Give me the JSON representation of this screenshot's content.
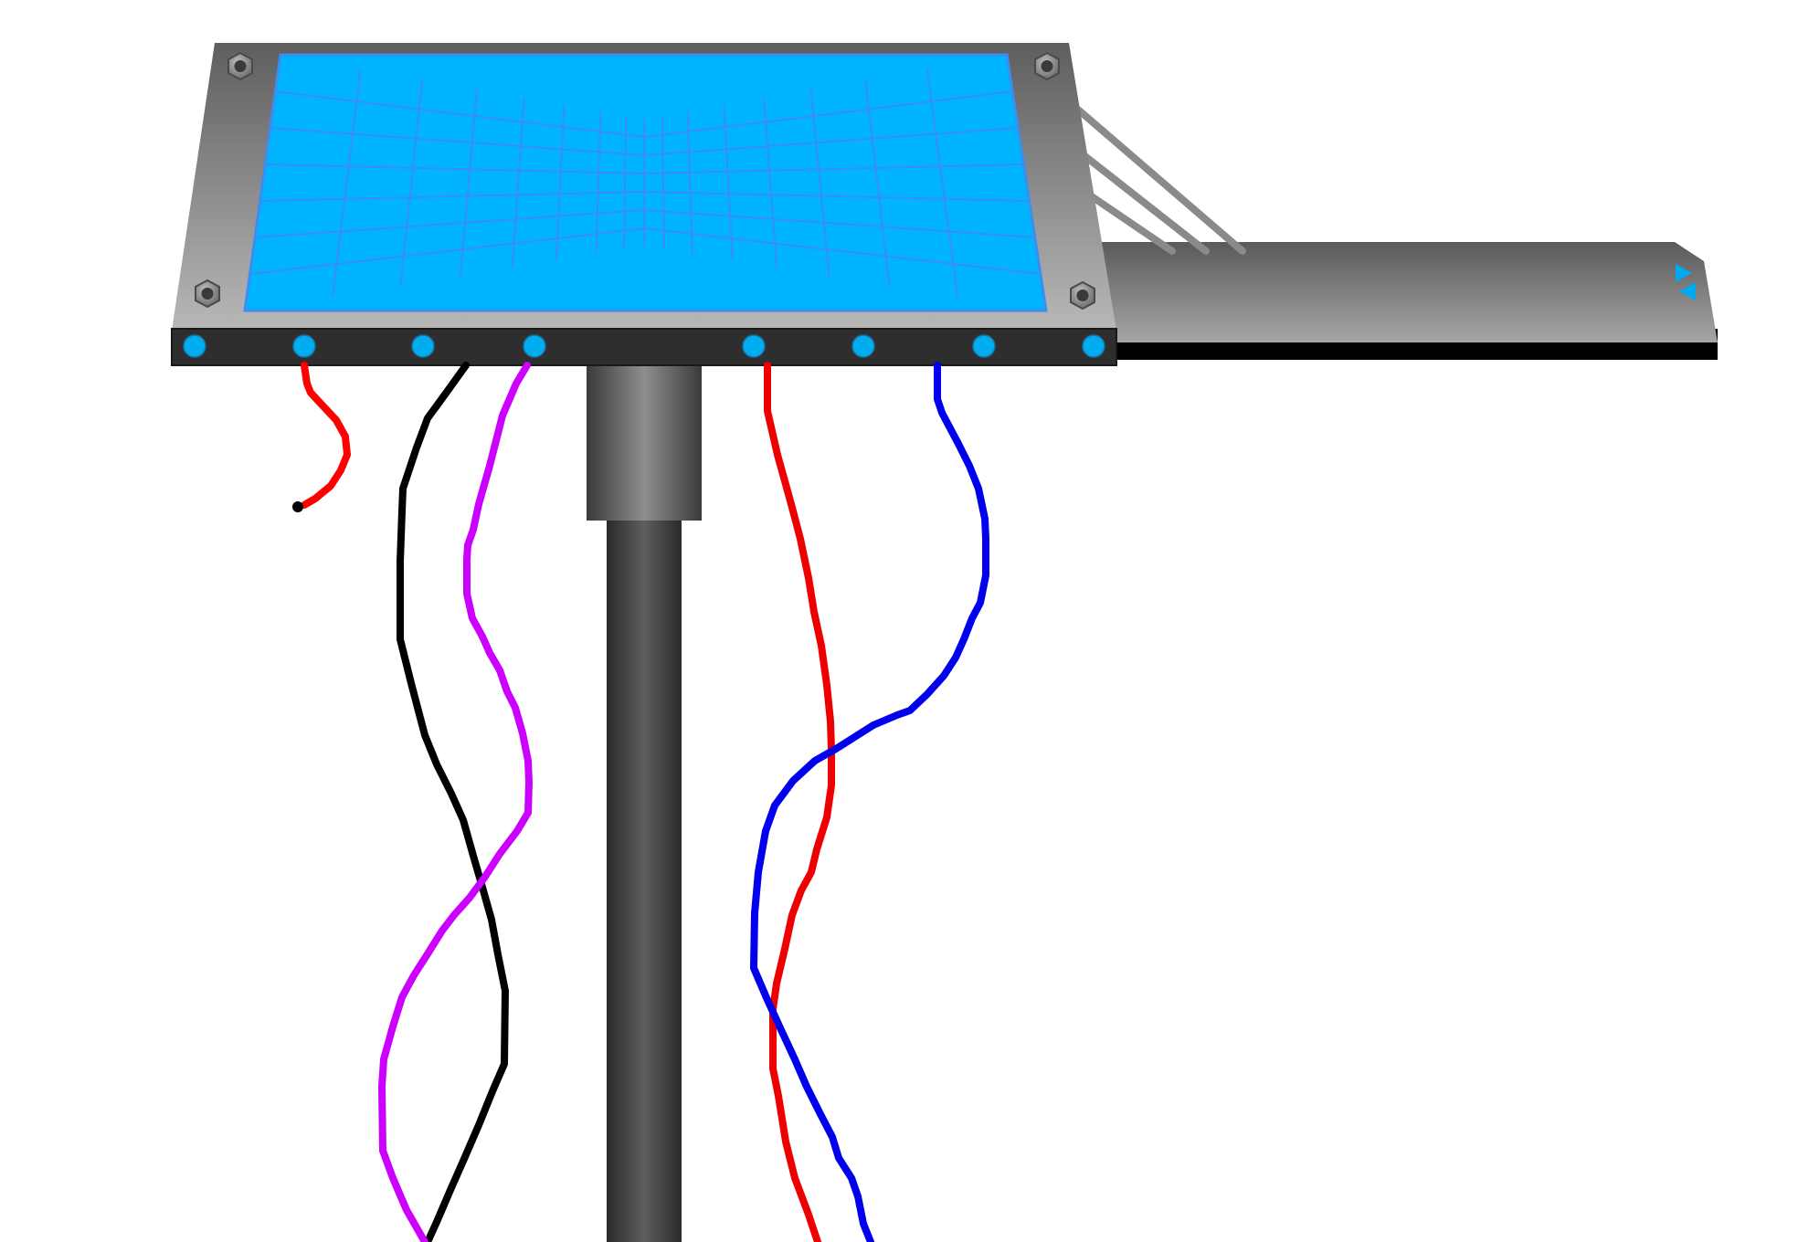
{
  "scene": {
    "background": "#ffffff",
    "panel": {
      "frame_color_top": "#5e5e5e",
      "frame_color_bottom": "#b8b8b8",
      "screen_color": "#00b4ff",
      "screen_grid_color": "#3a8ef0",
      "bolt_color": "#8a8a8a",
      "bolt_count": 4
    },
    "rail": {
      "body_color_top": "#5a5a5a",
      "body_color_bottom": "#a6a6a6",
      "base_color": "#000000",
      "indicator_color": "#00a8f0",
      "indicator_icons": [
        "arrow-right-icon",
        "arrow-left-icon"
      ],
      "strut_count": 3
    },
    "strip": {
      "color": "#2e2e2e",
      "connector_color": "#00aef0",
      "connector_count": 8
    },
    "pole": {
      "color_dark": "#2a2a2a",
      "color_light": "#8a8a8a"
    },
    "wires": [
      {
        "name": "red-short-wire",
        "color": "#ff0000"
      },
      {
        "name": "black-wire",
        "color": "#000000"
      },
      {
        "name": "magenta-wire",
        "color": "#cc00ff"
      },
      {
        "name": "red-long-wire",
        "color": "#ee0000"
      },
      {
        "name": "blue-wire",
        "color": "#0000ee"
      }
    ]
  }
}
